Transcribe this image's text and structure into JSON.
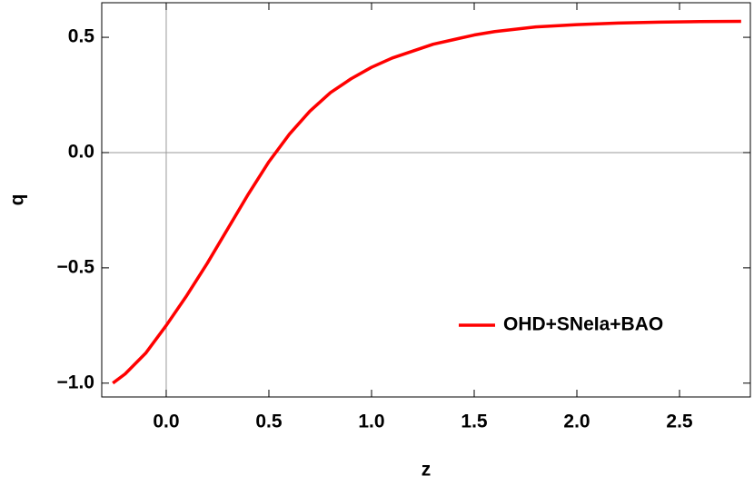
{
  "chart_data": {
    "type": "line",
    "x_label": "z",
    "y_label": "q",
    "x": [
      -0.26,
      -0.2,
      -0.1,
      0,
      0.1,
      0.2,
      0.3,
      0.4,
      0.5,
      0.6,
      0.7,
      0.8,
      0.9,
      1.0,
      1.1,
      1.2,
      1.3,
      1.4,
      1.5,
      1.6,
      1.8,
      2.0,
      2.2,
      2.4,
      2.6,
      2.8
    ],
    "series": [
      {
        "name": "OHD+SNeIa+BAO",
        "color": "#ff0000",
        "values": [
          -1.0,
          -0.96,
          -0.87,
          -0.75,
          -0.62,
          -0.48,
          -0.33,
          -0.18,
          -0.04,
          0.08,
          0.18,
          0.26,
          0.32,
          0.37,
          0.41,
          0.44,
          0.47,
          0.49,
          0.51,
          0.525,
          0.545,
          0.555,
          0.562,
          0.566,
          0.568,
          0.569
        ]
      }
    ],
    "xlim": [
      -0.314,
      2.845
    ],
    "ylim": [
      -1.06,
      0.65
    ],
    "xticks": [
      {
        "value": 0,
        "label": "0.0"
      },
      0.5,
      {
        "value": 1,
        "label": "1.0"
      },
      1.5,
      {
        "value": 2,
        "label": "2.0"
      },
      2.5
    ],
    "yticks": [
      {
        "value": -1,
        "label": "−1.0"
      },
      {
        "value": -0.5,
        "label": "−0.5"
      },
      {
        "value": 0,
        "label": "0.0"
      },
      0.5
    ],
    "legend": "lower right",
    "grid": false
  }
}
